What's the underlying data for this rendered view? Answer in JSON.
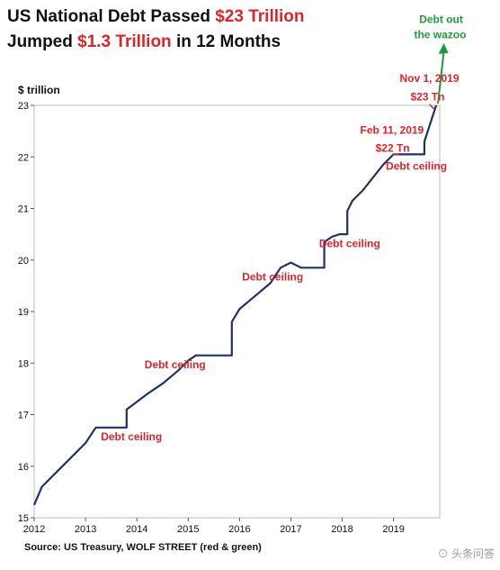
{
  "title": {
    "line1_pre": "US National Debt Passed ",
    "line1_red": "$23 Trillion",
    "line2_pre": "Jumped ",
    "line2_red": "$1.3 Trillion",
    "line2_post": " in 12 Months"
  },
  "source": "Source: US Treasury, WOLF STREET (red & green)",
  "watermark": "⊙ 头条问答",
  "colors": {
    "line": "#1e3264",
    "accent_red": "#d9262c",
    "accent_green": "#1f9a3a"
  },
  "chart_data": {
    "type": "line",
    "ylabel": "$ trillion",
    "xlabel": "",
    "xlim": [
      2012,
      2019.9
    ],
    "ylim": [
      15,
      23
    ],
    "x_ticks": [
      "2012",
      "2013",
      "2014",
      "2015",
      "2016",
      "2017",
      "2018",
      "2019"
    ],
    "y_ticks": [
      "15",
      "16",
      "17",
      "18",
      "19",
      "20",
      "21",
      "22",
      "23"
    ],
    "grid": false,
    "series": [
      {
        "x": [
          2012.0,
          2012.15,
          2012.4,
          2012.7,
          2013.0,
          2013.2,
          2013.35,
          2013.8,
          2013.8,
          2014.0,
          2014.2,
          2014.5,
          2014.8,
          2015.0,
          2015.15,
          2015.85,
          2015.85,
          2016.0,
          2016.3,
          2016.6,
          2016.8,
          2017.0,
          2017.2,
          2017.65,
          2017.65,
          2017.8,
          2017.95,
          2018.1,
          2018.1,
          2018.2,
          2018.4,
          2018.6,
          2018.8,
          2019.0,
          2019.1,
          2019.6,
          2019.6,
          2019.7,
          2019.83
        ],
        "y": [
          15.25,
          15.6,
          15.85,
          16.15,
          16.45,
          16.75,
          16.75,
          16.75,
          17.1,
          17.25,
          17.4,
          17.6,
          17.85,
          18.05,
          18.15,
          18.15,
          18.8,
          19.05,
          19.3,
          19.55,
          19.85,
          19.95,
          19.85,
          19.85,
          20.35,
          20.45,
          20.5,
          20.5,
          20.95,
          21.15,
          21.35,
          21.6,
          21.85,
          22.05,
          22.05,
          22.05,
          22.3,
          22.6,
          23.0
        ]
      }
    ],
    "annotations": [
      {
        "text": "Debt ceiling",
        "x": 2013.3,
        "y": 16.5,
        "color": "red"
      },
      {
        "text": "Debt ceiling",
        "x": 2014.15,
        "y": 17.9,
        "color": "red"
      },
      {
        "text": "Debt ceiling",
        "x": 2016.05,
        "y": 19.6,
        "color": "red"
      },
      {
        "text": "Debt ceiling",
        "x": 2017.55,
        "y": 20.25,
        "color": "red"
      },
      {
        "text": "Debt ceiling",
        "x": 2018.85,
        "y": 21.75,
        "color": "red"
      },
      {
        "text": "Feb 11, 2019",
        "x": 2018.35,
        "y": 22.45,
        "color": "red"
      },
      {
        "text": "$22 Tn",
        "x": 2018.65,
        "y": 22.1,
        "color": "red"
      },
      {
        "text": "Nov 1, 2019",
        "x": 2019.12,
        "y": 23.45,
        "color": "red"
      },
      {
        "text": "$23 Tn",
        "x": 2019.33,
        "y": 23.1,
        "color": "red"
      },
      {
        "text": "Debt out",
        "x": 2019.5,
        "y": 24.6,
        "color": "green"
      },
      {
        "text": "the wazoo",
        "x": 2019.4,
        "y": 24.3,
        "color": "green"
      }
    ]
  }
}
